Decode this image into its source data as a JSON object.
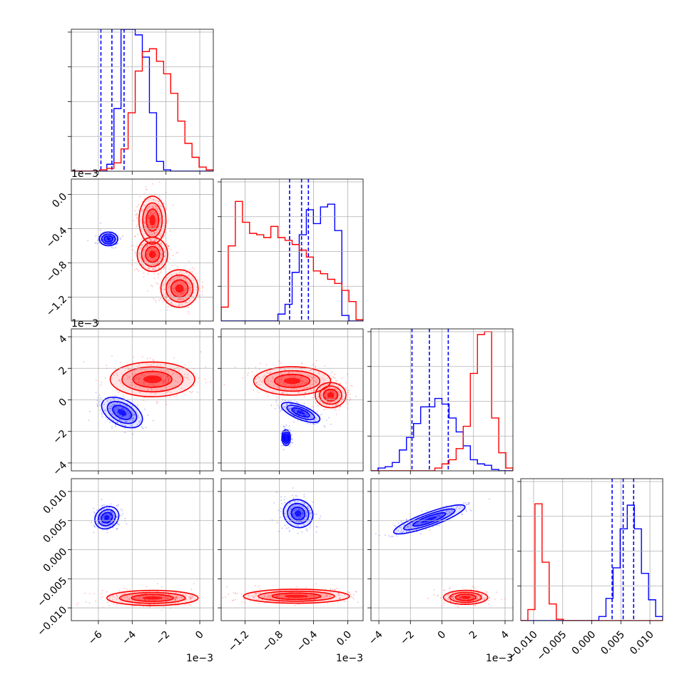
{
  "chart_data": {
    "type": "corner",
    "colors": {
      "blue": "#0000ff",
      "red": "#ff0000",
      "grid": "#b0b0b0",
      "frame": "#000000"
    },
    "params": [
      {
        "range": [
          -0.0076,
          0.0008
        ],
        "ticks": [
          -0.006,
          -0.004,
          -0.002,
          0.0
        ],
        "tick_labels": [
          "−6",
          "−4",
          "−2",
          "0"
        ],
        "offset_label": "1e−3"
      },
      {
        "range": [
          -0.00148,
          0.00018
        ],
        "ticks": [
          -0.0012,
          -0.0008,
          -0.0004,
          0.0
        ],
        "tick_labels": [
          "−1.2",
          "−0.8",
          "−0.4",
          "0.0"
        ],
        "offset_label": "1e−3"
      },
      {
        "range": [
          -0.0045,
          0.0045
        ],
        "ticks": [
          -0.004,
          -0.002,
          0.0,
          0.002,
          0.004
        ],
        "tick_labels": [
          "−4",
          "−2",
          "0",
          "2",
          "4"
        ],
        "offset_label": "1e−3"
      },
      {
        "range": [
          -0.0122,
          0.0122
        ],
        "ticks": [
          -0.01,
          -0.005,
          0.0,
          0.005,
          0.01
        ],
        "tick_labels": [
          "−0.010",
          "−0.005",
          "0.000",
          "0.005",
          "0.010"
        ],
        "offset_label": ""
      }
    ],
    "series": [
      {
        "color": "blue",
        "quantiles": [
          [
            -0.00585,
            -0.0052,
            -0.00448
          ],
          [
            -0.00068,
            -0.00054,
            -0.00046
          ],
          [
            -0.0019,
            -0.0008,
            0.0004
          ],
          [
            0.0035,
            0.0054,
            0.0072
          ]
        ],
        "hist": [
          [
            0,
            0,
            0,
            0,
            0,
            0.05,
            0.45,
            1.02,
            1.02,
            0.98,
            0.82,
            0.42,
            0.07,
            0.01,
            0,
            0,
            0,
            0,
            0,
            0
          ],
          [
            0,
            0,
            0,
            0,
            0,
            0,
            0,
            0,
            0.05,
            0.12,
            0.35,
            0.62,
            0.8,
            0.7,
            0.82,
            0.84,
            0.65,
            0.04,
            0,
            0
          ],
          [
            0,
            0.02,
            0.03,
            0.06,
            0.15,
            0.24,
            0.34,
            0.46,
            0.46,
            0.52,
            0.48,
            0.38,
            0.28,
            0.18,
            0.08,
            0.05,
            0.04,
            0.01,
            0,
            0
          ],
          [
            0,
            0,
            0,
            0,
            0,
            0,
            0,
            0,
            0,
            0,
            0,
            0.03,
            0.16,
            0.38,
            0.66,
            0.83,
            0.66,
            0.34,
            0.15,
            0.03
          ]
        ],
        "blobs": {
          "1-0": [
            [
              -0.0054,
              -0.00052,
              0.00055,
              8e-05,
              0
            ]
          ],
          "2-0": [
            [
              -0.0046,
              -0.0008,
              0.00075,
              0.0014,
              -62
            ]
          ],
          "2-1": [
            [
              -0.00055,
              -0.0008,
              8e-05,
              0.0013,
              -68
            ],
            [
              -0.00072,
              -0.0024,
              5e-05,
              0.0005,
              0
            ]
          ],
          "3-0": [
            [
              -0.0055,
              0.0055,
              0.00075,
              0.0018,
              -35
            ]
          ],
          "3-1": [
            [
              -0.00058,
              0.0062,
              0.00016,
              0.0026,
              -60
            ]
          ],
          "3-2": [
            [
              -0.0008,
              0.0052,
              0.0024,
              0.0012,
              -20
            ]
          ]
        }
      },
      {
        "color": "red",
        "quantiles": [],
        "hist": [
          [
            0,
            0,
            0,
            0,
            0.01,
            0.02,
            0.06,
            0.16,
            0.42,
            0.72,
            0.86,
            0.88,
            0.79,
            0.7,
            0.56,
            0.36,
            0.2,
            0.1,
            0.03,
            0.01
          ],
          [
            0.1,
            0.54,
            0.86,
            0.71,
            0.63,
            0.62,
            0.6,
            0.68,
            0.6,
            0.58,
            0.55,
            0.51,
            0.46,
            0.36,
            0.34,
            0.3,
            0.27,
            0.22,
            0.14,
            0.01
          ],
          [
            0,
            0,
            0,
            0,
            0,
            0,
            0,
            0,
            0,
            0.02,
            0.05,
            0.08,
            0.16,
            0.32,
            0.7,
            0.98,
            1.0,
            0.38,
            0.13,
            0.02
          ],
          [
            0,
            0.08,
            0.84,
            0.42,
            0.12,
            0.01,
            0,
            0,
            0,
            0,
            0,
            0,
            0,
            0,
            0,
            0,
            0,
            0,
            0,
            0
          ]
        ],
        "blobs": {
          "1-0": [
            [
              -0.0028,
              -0.0003,
              0.0008,
              0.00028,
              0
            ],
            [
              -0.0028,
              -0.0007,
              0.0009,
              0.0002,
              0
            ],
            [
              -0.0012,
              -0.0011,
              0.0011,
              0.00022,
              0
            ]
          ],
          "2-0": [
            [
              -0.0028,
              0.0013,
              0.0025,
              0.0011,
              0
            ]
          ],
          "2-1": [
            [
              -0.00065,
              0.0012,
              0.00045,
              0.0009,
              0
            ],
            [
              -0.0002,
              0.0003,
              0.00018,
              0.0008,
              0
            ]
          ],
          "3-0": [
            [
              -0.0028,
              -0.0083,
              0.0027,
              0.0013,
              0
            ]
          ],
          "3-1": [
            [
              -0.0006,
              -0.008,
              0.00062,
              0.0012,
              0
            ]
          ],
          "3-2": [
            [
              0.0015,
              -0.0082,
              0.0014,
              0.0012,
              0
            ]
          ]
        }
      }
    ]
  }
}
